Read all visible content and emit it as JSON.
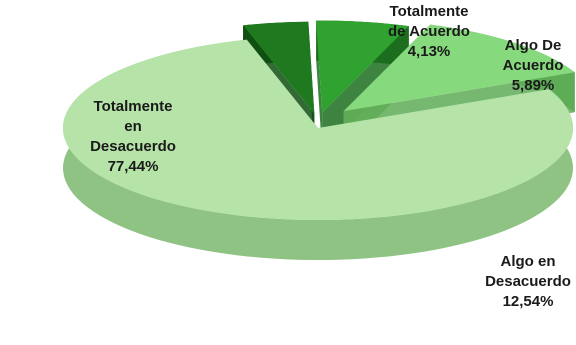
{
  "chart_data": {
    "type": "pie",
    "style": "3d-exploded",
    "slices": [
      {
        "label": [
          "Totalmente",
          "en",
          "Desacuerdo"
        ],
        "value_text": "77,44%",
        "value": 77.44,
        "color": "#b5e3a8",
        "side": "#8ec383"
      },
      {
        "label": [
          "Totalmente",
          "de Acuerdo"
        ],
        "value_text": "4,13%",
        "value": 4.13,
        "color": "#1f7a1f",
        "side": "#0f4f12"
      },
      {
        "label": [
          "Algo De",
          "Acuerdo"
        ],
        "value_text": "5,89%",
        "value": 5.89,
        "color": "#2fa22f",
        "side": "#1c6e1e"
      },
      {
        "label": [
          "Algo en",
          "Desacuerdo"
        ],
        "value_text": "12,54%",
        "value": 12.54,
        "color": "#86d97c",
        "side": "#5fab57"
      }
    ]
  }
}
